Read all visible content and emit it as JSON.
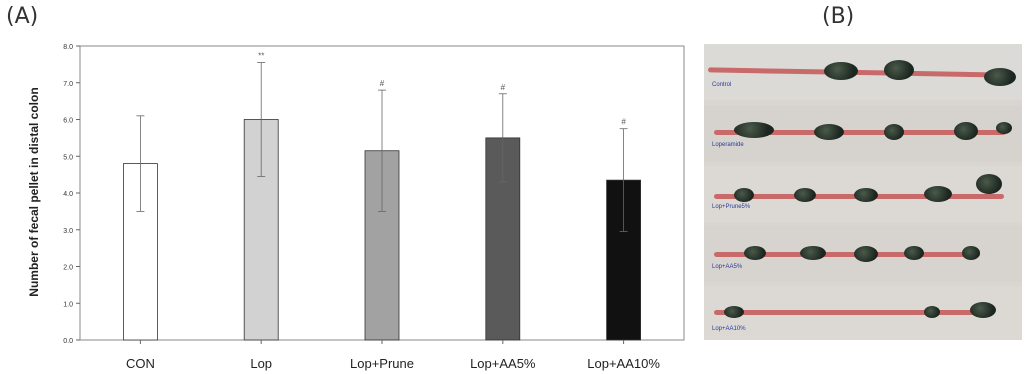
{
  "panels": {
    "a_label": "(A)",
    "b_label": "(B)"
  },
  "chart_data": {
    "type": "bar",
    "title": "",
    "xlabel": "",
    "ylabel": "Number of fecal pellet in distal colon",
    "categories": [
      "CON",
      "Lop",
      "Lop+Prune",
      "Lop+AA5%",
      "Lop+AA10%"
    ],
    "values": [
      4.8,
      6.0,
      5.15,
      5.5,
      4.35
    ],
    "errors": [
      1.3,
      1.55,
      1.65,
      1.2,
      1.4
    ],
    "annotations": [
      "",
      "**",
      "#",
      "#",
      "#"
    ],
    "bar_colors": [
      "#ffffff",
      "#d2d2d2",
      "#a2a2a2",
      "#5a5a5a",
      "#111111"
    ],
    "ylim": [
      0,
      8
    ],
    "yticks": [
      "0.0",
      "1.0",
      "2.0",
      "3.0",
      "4.0",
      "5.0",
      "6.0",
      "7.0",
      "8.0"
    ],
    "grid": false,
    "legend": "none"
  },
  "photo": {
    "labels": [
      "Control",
      "Loperamide",
      "Lop+Prune5%",
      "Lop+AA5%",
      "Lop+AA10%"
    ]
  }
}
